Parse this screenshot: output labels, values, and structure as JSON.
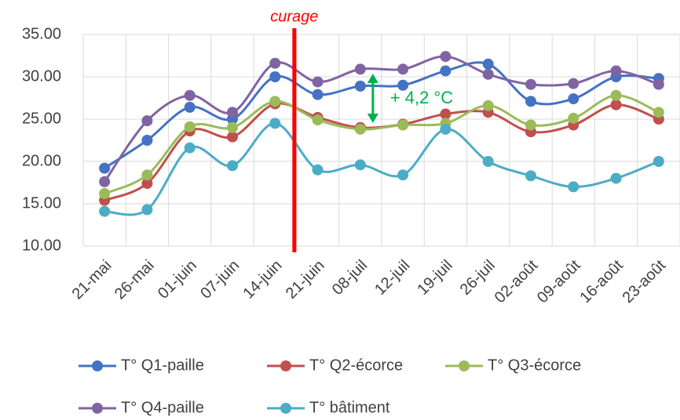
{
  "chart_data": {
    "type": "line",
    "annotations": [
      "curage",
      "+ 4,2 °C"
    ],
    "categories": [
      "21-mai",
      "26-mai",
      "01-juin",
      "07-juin",
      "14-juin",
      "21-juin",
      "08-juil",
      "12-juil",
      "19-juil",
      "26-juil",
      "02-août",
      "09-août",
      "16-août",
      "23-août"
    ],
    "series": [
      {
        "name": "T° Q1-paille",
        "color": "#4472c4",
        "values": [
          19.2,
          22.5,
          26.4,
          25.0,
          30.0,
          27.9,
          28.9,
          29.0,
          30.7,
          31.5,
          27.1,
          27.4,
          30.0,
          29.8
        ]
      },
      {
        "name": "T° Q2-écorce",
        "color": "#c0504d",
        "values": [
          15.4,
          17.4,
          23.6,
          22.9,
          26.8,
          25.2,
          24.0,
          24.4,
          25.6,
          25.8,
          23.5,
          24.3,
          26.7,
          25.0
        ]
      },
      {
        "name": "T° Q3-écorce",
        "color": "#9bbb59",
        "values": [
          16.2,
          18.4,
          24.1,
          24.0,
          27.1,
          24.9,
          23.8,
          24.3,
          24.5,
          26.6,
          24.3,
          25.1,
          27.8,
          25.8
        ]
      },
      {
        "name": "T° Q4-paille",
        "color": "#8064a2",
        "values": [
          17.6,
          24.8,
          27.8,
          25.8,
          31.6,
          29.4,
          30.9,
          30.9,
          32.4,
          30.3,
          29.1,
          29.2,
          30.7,
          29.1
        ]
      },
      {
        "name": "T° bâtiment",
        "color": "#4bacc6",
        "values": [
          14.1,
          14.3,
          21.6,
          19.5,
          24.5,
          19.0,
          19.6,
          18.4,
          23.8,
          20.0,
          18.3,
          17.0,
          18.0,
          20.0
        ]
      }
    ],
    "ylim": [
      10,
      35
    ],
    "yticks": [
      {
        "value": 10,
        "label": "10.00"
      },
      {
        "value": 15,
        "label": "15.00"
      },
      {
        "value": 20,
        "label": "20.00"
      },
      {
        "value": 25,
        "label": "25.00"
      },
      {
        "value": 30,
        "label": "30.00"
      },
      {
        "value": 35,
        "label": "35.00"
      }
    ],
    "grid": true
  }
}
